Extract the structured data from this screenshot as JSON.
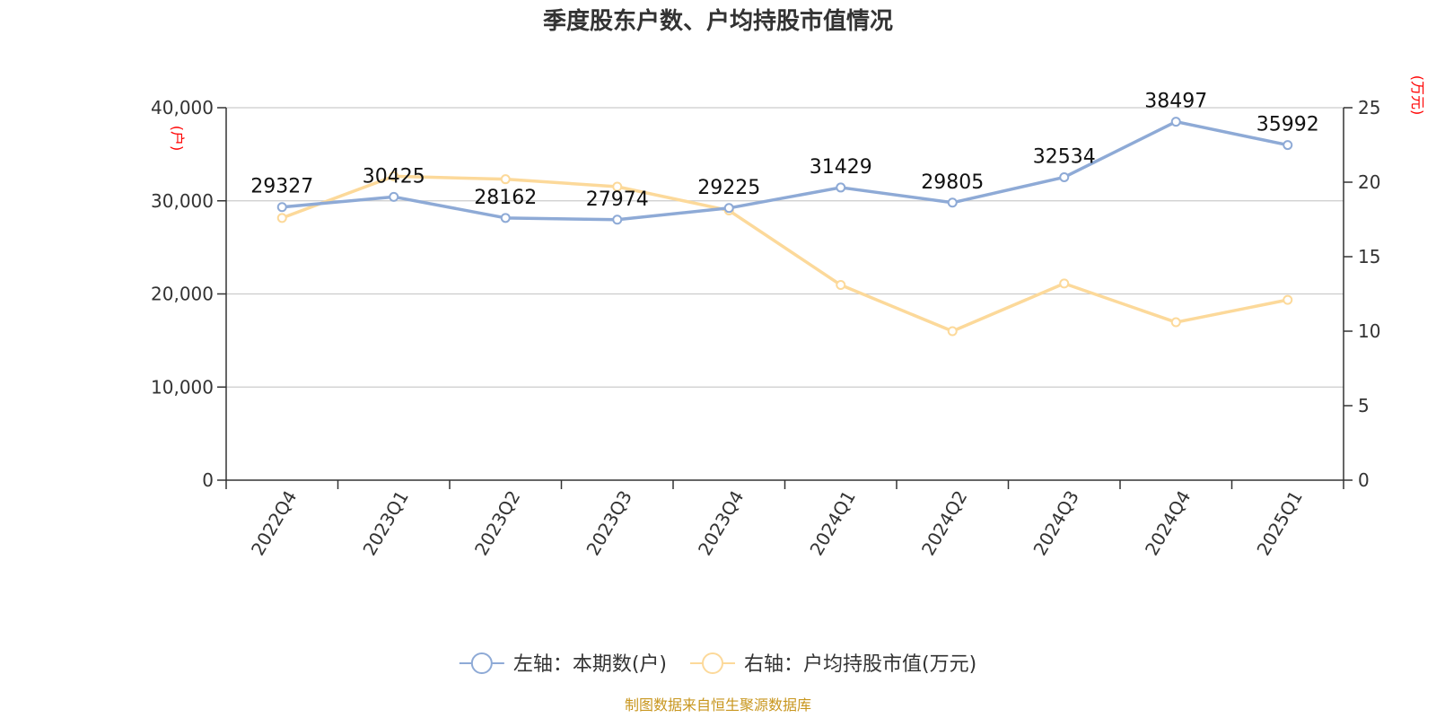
{
  "chart_data": {
    "type": "line",
    "title": "季度股东户数、户均持股市值情况",
    "categories": [
      "2022Q4",
      "2023Q1",
      "2023Q2",
      "2023Q3",
      "2023Q4",
      "2024Q1",
      "2024Q2",
      "2024Q3",
      "2024Q4",
      "2025Q1"
    ],
    "series": [
      {
        "name": "左轴：本期数(户)",
        "axis": "left",
        "color": "#8eaad6",
        "values": [
          29327,
          30425,
          28162,
          27974,
          29225,
          31429,
          29805,
          32534,
          38497,
          35992
        ],
        "show_labels": true
      },
      {
        "name": "右轴：户均持股市值(万元)",
        "axis": "right",
        "color": "#fcd99a",
        "values": [
          17.6,
          20.4,
          20.2,
          19.7,
          18.1,
          13.1,
          10.0,
          13.2,
          10.6,
          12.1
        ],
        "show_labels": false
      }
    ],
    "y_left": {
      "unit": "(户)",
      "min": 0,
      "max": 40000,
      "ticks": [
        0,
        10000,
        20000,
        30000,
        40000
      ],
      "tick_labels": [
        "0",
        "10,000",
        "20,000",
        "30,000",
        "40,000"
      ]
    },
    "y_right": {
      "unit": "(万元)",
      "min": 0,
      "max": 25,
      "ticks": [
        0,
        5,
        10,
        15,
        20,
        25
      ],
      "tick_labels": [
        "0",
        "5",
        "10",
        "15",
        "20",
        "25"
      ]
    },
    "grid": true,
    "legend_position": "bottom"
  },
  "source": "制图数据来自恒生聚源数据库"
}
